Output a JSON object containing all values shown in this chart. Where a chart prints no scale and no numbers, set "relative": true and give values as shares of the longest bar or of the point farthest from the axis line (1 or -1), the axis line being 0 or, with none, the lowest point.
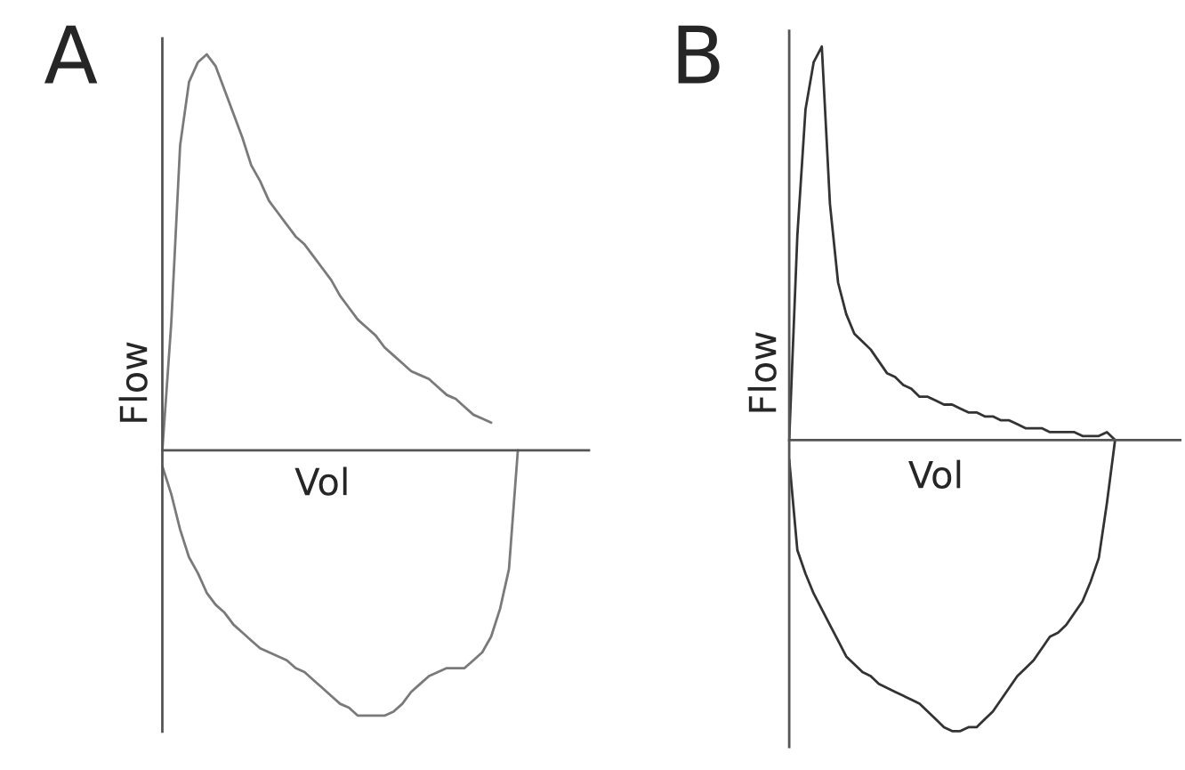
{
  "chart_data": [
    {
      "type": "line",
      "title": "A",
      "xlabel": "Vol",
      "ylabel": "Flow",
      "relative": true,
      "categories": [
        null,
        null,
        null,
        null,
        null,
        null,
        null,
        null,
        null,
        null,
        null,
        null,
        null,
        null,
        null,
        null,
        null,
        null,
        null,
        null,
        null,
        null,
        null,
        null,
        null,
        null,
        null,
        null,
        null,
        null,
        null,
        null,
        null,
        null,
        null,
        null,
        null,
        null,
        null,
        null,
        null
      ],
      "series": [
        {
          "color": "#7a7a7a",
          "values": [
            0,
            0.32,
            0.77,
            0.93,
            0.98,
            1,
            0.97,
            0.91,
            0.85,
            0.79,
            0.72,
            0.68,
            0.63,
            0.6,
            0.57,
            0.54,
            0.52,
            0.49,
            0.46,
            0.43,
            0.39,
            0.36,
            0.33,
            0.31,
            0.29,
            0.26,
            0.24,
            0.22,
            0.2,
            0.19,
            0.18,
            0.16,
            0.14,
            0.13,
            0.11,
            0.09,
            0.08,
            0.07,
            null,
            null,
            null
          ]
        },
        {
          "color": "#7a7a7a",
          "values": [
            -0.04,
            -0.11,
            -0.2,
            -0.27,
            -0.31,
            -0.36,
            -0.39,
            -0.41,
            -0.44,
            -0.46,
            -0.48,
            -0.5,
            -0.51,
            -0.52,
            -0.53,
            -0.55,
            -0.56,
            -0.58,
            -0.6,
            -0.62,
            -0.64,
            -0.65,
            -0.67,
            -0.67,
            -0.67,
            -0.67,
            -0.66,
            -0.64,
            -0.61,
            -0.59,
            -0.57,
            -0.56,
            -0.55,
            -0.55,
            -0.55,
            -0.53,
            -0.51,
            -0.47,
            -0.4,
            -0.3,
            0
          ]
        }
      ]
    },
    {
      "type": "line",
      "title": "B",
      "xlabel": "Vol",
      "ylabel": "Flow",
      "relative": true,
      "categories": [
        null,
        null,
        null,
        null,
        null,
        null,
        null,
        null,
        null,
        null,
        null,
        null,
        null,
        null,
        null,
        null,
        null,
        null,
        null,
        null,
        null,
        null,
        null,
        null,
        null,
        null,
        null,
        null,
        null,
        null,
        null,
        null,
        null,
        null,
        null,
        null,
        null,
        null,
        null,
        null,
        null
      ],
      "series": [
        {
          "color": "#333333",
          "values": [
            0,
            0.52,
            0.84,
            0.96,
            1,
            0.6,
            0.4,
            0.32,
            0.27,
            0.25,
            0.23,
            0.2,
            0.17,
            0.16,
            0.14,
            0.13,
            0.11,
            0.11,
            0.1,
            0.09,
            0.09,
            0.08,
            0.07,
            0.07,
            0.06,
            0.06,
            0.05,
            0.05,
            0.04,
            0.03,
            0.03,
            0.03,
            0.02,
            0.02,
            0.02,
            0.02,
            0.01,
            0.01,
            0.01,
            0.02,
            0
          ]
        },
        {
          "color": "#333333",
          "values": [
            -0.05,
            -0.28,
            -0.34,
            -0.39,
            -0.43,
            -0.47,
            -0.51,
            -0.55,
            -0.57,
            -0.59,
            -0.6,
            -0.62,
            -0.63,
            -0.64,
            -0.65,
            -0.66,
            -0.67,
            -0.69,
            -0.71,
            -0.73,
            -0.74,
            -0.74,
            -0.73,
            -0.73,
            -0.71,
            -0.69,
            -0.66,
            -0.63,
            -0.6,
            -0.58,
            -0.56,
            -0.53,
            -0.5,
            -0.49,
            -0.47,
            -0.44,
            -0.41,
            -0.36,
            -0.3,
            -0.16,
            0
          ]
        }
      ]
    }
  ]
}
